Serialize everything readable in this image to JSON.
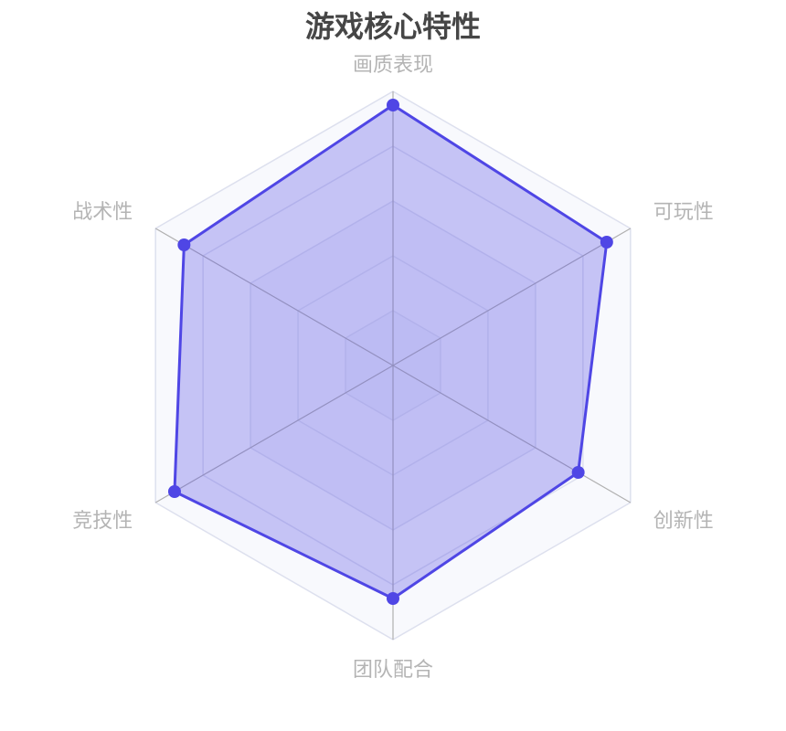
{
  "chart_data": {
    "type": "radar",
    "title": "游戏核心特性",
    "indicators": [
      "画质表现",
      "可玩性",
      "创新性",
      "团队配合",
      "竞技性",
      "战术性"
    ],
    "max": 100,
    "values": [
      95,
      90,
      78,
      85,
      92,
      88
    ],
    "split_number": 5,
    "colors": {
      "series": "#4f46e5",
      "fill": "rgba(79,70,229,0.3)",
      "split_line": "#dde0ee",
      "axis_line": "#b0b0b0",
      "label": "#b4b4b4"
    }
  }
}
